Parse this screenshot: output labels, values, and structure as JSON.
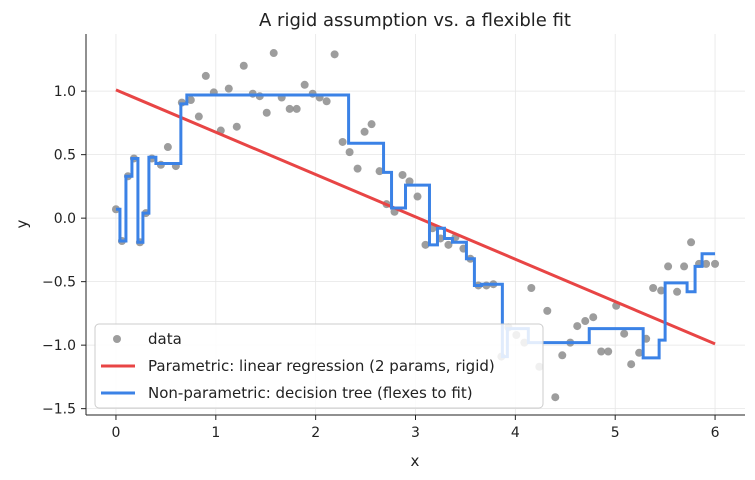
{
  "chart_data": {
    "type": "scatter",
    "title": "A rigid assumption vs. a flexible fit",
    "xlabel": "x",
    "ylabel": "y",
    "xlim": [
      -0.3,
      6.3
    ],
    "ylim": [
      -1.55,
      1.45
    ],
    "xticks": [
      0,
      1,
      2,
      3,
      4,
      5,
      6
    ],
    "yticks": [
      -1.5,
      -1.0,
      -0.5,
      0.0,
      0.5,
      1.0
    ],
    "ytick_labels": [
      "−1.5",
      "−1.0",
      "−0.5",
      "0.0",
      "0.5",
      "1.0"
    ],
    "grid": true,
    "legend_position": "lower-left",
    "colors": {
      "data": "#8c8c8c",
      "linear": "#e84545",
      "tree": "#3b82e6"
    },
    "series": [
      {
        "name": "data",
        "kind": "scatter",
        "x": [
          0.0,
          0.06,
          0.12,
          0.18,
          0.24,
          0.3,
          0.36,
          0.45,
          0.52,
          0.6,
          0.66,
          0.75,
          0.83,
          0.9,
          0.98,
          1.05,
          1.13,
          1.21,
          1.28,
          1.37,
          1.44,
          1.51,
          1.58,
          1.66,
          1.74,
          1.81,
          1.89,
          1.97,
          2.04,
          2.11,
          2.19,
          2.27,
          2.34,
          2.42,
          2.49,
          2.56,
          2.64,
          2.71,
          2.79,
          2.87,
          2.94,
          3.02,
          3.1,
          3.17,
          3.25,
          3.33,
          3.4,
          3.48,
          3.55,
          3.63,
          3.71,
          3.78,
          3.86,
          3.93,
          4.01,
          4.09,
          4.16,
          4.24,
          4.32,
          4.4,
          4.47,
          4.55,
          4.62,
          4.7,
          4.78,
          4.86,
          4.93,
          5.01,
          5.09,
          5.16,
          5.24,
          5.31,
          5.38,
          5.46,
          5.53,
          5.62,
          5.69,
          5.76,
          5.84,
          5.91,
          6.0
        ],
        "y": [
          0.07,
          -0.18,
          0.33,
          0.47,
          -0.19,
          0.04,
          0.47,
          0.42,
          0.56,
          0.41,
          0.91,
          0.93,
          0.8,
          1.12,
          0.99,
          0.69,
          1.02,
          0.72,
          1.2,
          0.98,
          0.96,
          0.83,
          1.3,
          0.95,
          0.86,
          0.86,
          1.05,
          0.98,
          0.95,
          0.92,
          1.29,
          0.6,
          0.52,
          0.39,
          0.68,
          0.74,
          0.37,
          0.11,
          0.05,
          0.34,
          0.29,
          0.17,
          -0.21,
          -0.08,
          -0.16,
          -0.21,
          -0.15,
          -0.24,
          -0.32,
          -0.53,
          -0.53,
          -0.52,
          -1.09,
          -0.86,
          -0.92,
          -0.98,
          -0.55,
          -1.17,
          -0.73,
          -1.41,
          -1.08,
          -0.98,
          -0.85,
          -0.81,
          -0.78,
          -1.05,
          -1.05,
          -0.69,
          -0.91,
          -1.15,
          -1.06,
          -0.95,
          -0.55,
          -0.57,
          -0.38,
          -0.58,
          -0.38,
          -0.19,
          -0.36,
          -0.36,
          -0.36
        ]
      },
      {
        "name": "Parametric: linear regression (2 params, rigid)",
        "kind": "line",
        "x": [
          0,
          6
        ],
        "y": [
          1.01,
          -0.99
        ]
      },
      {
        "name": "Non-parametric: decision tree (flexes to fit)",
        "kind": "step",
        "x": [
          0.0,
          0.04,
          0.04,
          0.1,
          0.1,
          0.16,
          0.16,
          0.22,
          0.22,
          0.27,
          0.27,
          0.33,
          0.33,
          0.4,
          0.4,
          0.65,
          0.65,
          0.71,
          0.71,
          2.33,
          2.33,
          2.68,
          2.68,
          2.76,
          2.76,
          2.9,
          2.9,
          3.14,
          3.14,
          3.22,
          3.22,
          3.29,
          3.29,
          3.37,
          3.37,
          3.51,
          3.51,
          3.59,
          3.59,
          3.66,
          3.66,
          3.87,
          3.87,
          3.92,
          3.92,
          4.13,
          4.13,
          4.74,
          4.74,
          5.28,
          5.28,
          5.44,
          5.44,
          5.5,
          5.5,
          5.72,
          5.72,
          5.8,
          5.8,
          5.87,
          5.87,
          6.0
        ],
        "y": [
          0.07,
          0.07,
          -0.18,
          -0.18,
          0.33,
          0.33,
          0.47,
          0.47,
          -0.19,
          -0.19,
          0.04,
          0.04,
          0.48,
          0.48,
          0.43,
          0.43,
          0.9,
          0.9,
          0.97,
          0.97,
          0.59,
          0.59,
          0.36,
          0.36,
          0.08,
          0.08,
          0.26,
          0.26,
          -0.21,
          -0.21,
          -0.08,
          -0.08,
          -0.16,
          -0.16,
          -0.19,
          -0.19,
          -0.32,
          -0.32,
          -0.53,
          -0.53,
          -0.52,
          -0.52,
          -1.09,
          -1.09,
          -0.87,
          -0.87,
          -0.98,
          -0.98,
          -0.87,
          -0.87,
          -1.1,
          -1.1,
          -0.96,
          -0.96,
          -0.51,
          -0.51,
          -0.58,
          -0.58,
          -0.38,
          -0.38,
          -0.28,
          -0.28
        ]
      }
    ]
  }
}
